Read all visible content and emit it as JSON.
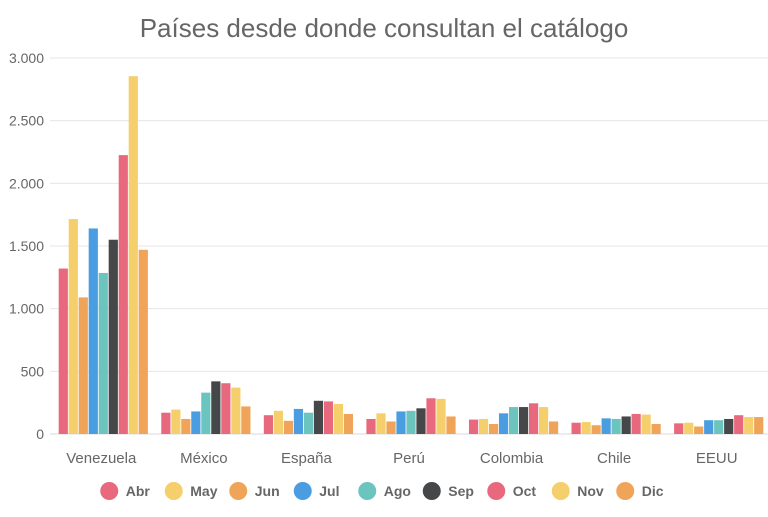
{
  "chart_data": {
    "type": "bar",
    "title": "Países desde donde consultan el catálogo",
    "xlabel": "",
    "ylabel": "",
    "ylim": [
      0,
      3000
    ],
    "yticks": [
      0,
      500,
      1000,
      1500,
      2000,
      2500,
      3000
    ],
    "ytick_labels": [
      "0",
      "500",
      "1.000",
      "1.500",
      "2.000",
      "2.500",
      "3.000"
    ],
    "grid": true,
    "legend_position": "bottom",
    "categories": [
      "Venezuela",
      "México",
      "España",
      "Perú",
      "Colombia",
      "Chile",
      "EEUU"
    ],
    "series": [
      {
        "name": "Abr",
        "color": "#e8697d",
        "values": [
          1320,
          170,
          150,
          120,
          115,
          90,
          85
        ]
      },
      {
        "name": "May",
        "color": "#f5cf6b",
        "values": [
          1715,
          195,
          185,
          165,
          120,
          95,
          90
        ]
      },
      {
        "name": "Jun",
        "color": "#f0a45a",
        "values": [
          1090,
          120,
          105,
          100,
          80,
          70,
          60
        ]
      },
      {
        "name": "Jul",
        "color": "#4a9de0",
        "values": [
          1640,
          180,
          200,
          180,
          165,
          125,
          110
        ]
      },
      {
        "name": "Ago",
        "color": "#6cc4be",
        "values": [
          1285,
          330,
          170,
          185,
          215,
          120,
          110
        ]
      },
      {
        "name": "Sep",
        "color": "#454749",
        "values": [
          1550,
          420,
          265,
          205,
          215,
          140,
          120
        ]
      },
      {
        "name": "Oct",
        "color": "#e8697d",
        "values": [
          2225,
          405,
          260,
          285,
          245,
          160,
          150
        ]
      },
      {
        "name": "Nov",
        "color": "#f5cf6b",
        "values": [
          2855,
          370,
          240,
          280,
          215,
          155,
          135
        ]
      },
      {
        "name": "Dic",
        "color": "#f0a45a",
        "values": [
          1470,
          220,
          160,
          140,
          100,
          80,
          135
        ]
      }
    ]
  }
}
